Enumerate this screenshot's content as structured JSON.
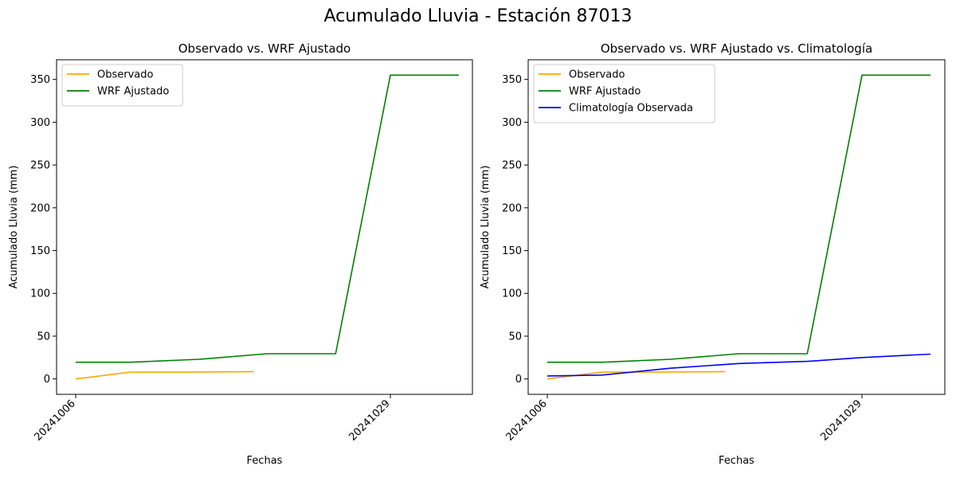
{
  "figure": {
    "title": "Acumulado Lluvia - Estación 87013"
  },
  "colors": {
    "observado": "#ffa500",
    "wrf": "#008000",
    "climatologia": "#0000ff"
  },
  "chart_data": [
    {
      "type": "line",
      "title": "Observado vs. WRF Ajustado",
      "xlabel": "Fechas",
      "ylabel": "Acumulado Lluvia (mm)",
      "x_ticks": [
        "20241006",
        "20241029"
      ],
      "yticks": [
        0,
        50,
        100,
        150,
        200,
        250,
        300,
        350
      ],
      "ylim": [
        -18,
        373
      ],
      "legend": "top-left",
      "series": [
        {
          "name": "Observado",
          "color_key": "observado",
          "x": [
            "20241006",
            "20241010",
            "20241014",
            "20241018",
            "20241019"
          ],
          "values": [
            0,
            8,
            8,
            8.3,
            8.6
          ]
        },
        {
          "name": "WRF Ajustado",
          "color_key": "wrf",
          "x": [
            "20241006",
            "20241010",
            "20241015",
            "20241020",
            "20241025",
            "20241029",
            "20241103"
          ],
          "values": [
            19.5,
            19.5,
            23,
            29.5,
            29.5,
            355,
            355
          ]
        }
      ]
    },
    {
      "type": "line",
      "title": "Observado vs. WRF Ajustado vs. Climatología",
      "xlabel": "Fechas",
      "ylabel": "Acumulado Lluvia (mm)",
      "x_ticks": [
        "20241006",
        "20241029"
      ],
      "yticks": [
        0,
        50,
        100,
        150,
        200,
        250,
        300,
        350
      ],
      "ylim": [
        -18,
        373
      ],
      "legend": "top-left",
      "series": [
        {
          "name": "Observado",
          "color_key": "observado",
          "x": [
            "20241006",
            "20241010",
            "20241014",
            "20241018",
            "20241019"
          ],
          "values": [
            0,
            8,
            8,
            8.3,
            8.6
          ]
        },
        {
          "name": "WRF Ajustado",
          "color_key": "wrf",
          "x": [
            "20241006",
            "20241010",
            "20241015",
            "20241020",
            "20241025",
            "20241029",
            "20241103"
          ],
          "values": [
            19.5,
            19.5,
            23,
            29.5,
            29.5,
            355,
            355
          ]
        },
        {
          "name": "Climatología Observada",
          "color_key": "climatologia",
          "x": [
            "20241006",
            "20241010",
            "20241015",
            "20241020",
            "20241025",
            "20241029",
            "20241103"
          ],
          "values": [
            3.5,
            4.5,
            12.5,
            18,
            20.5,
            25,
            29
          ]
        }
      ]
    }
  ]
}
